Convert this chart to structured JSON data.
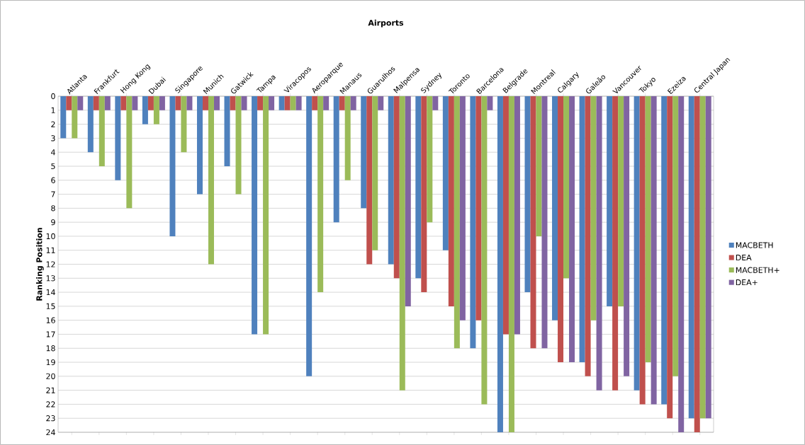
{
  "chart_data": {
    "type": "bar",
    "xlabel": "Airports",
    "ylabel": "Ranking Position",
    "categories": [
      "Atlanta",
      "Frankfurt",
      "Hong Kong",
      "Dubai",
      "Singapore",
      "Munich",
      "Gatwick",
      "Tampa",
      "Viracopos",
      "Aeroparque",
      "Manaus",
      "Guarulhos",
      "Malpensa",
      "Sydney",
      "Toronto",
      "Barcelona",
      "Belgrade",
      "Montreal",
      "Calgary",
      "Galeão",
      "Vancouver",
      "Tokyo",
      "Ezeiza",
      "Central Japan"
    ],
    "series": [
      {
        "name": "MACBETH",
        "color": "#4f81bd",
        "values": [
          3,
          4,
          6,
          2,
          10,
          7,
          5,
          17,
          1,
          20,
          9,
          8,
          12,
          13,
          11,
          18,
          24,
          14,
          16,
          19,
          15,
          21,
          22,
          23
        ]
      },
      {
        "name": "DEA",
        "color": "#c0504d",
        "values": [
          1,
          1,
          1,
          1,
          1,
          1,
          1,
          1,
          1,
          1,
          1,
          12,
          13,
          14,
          15,
          16,
          17,
          18,
          19,
          20,
          21,
          22,
          23,
          24
        ]
      },
      {
        "name": "MACBETH+",
        "color": "#9bbb59",
        "values": [
          3,
          5,
          8,
          2,
          4,
          12,
          7,
          17,
          1,
          14,
          6,
          11,
          21,
          9,
          18,
          22,
          24,
          10,
          13,
          16,
          15,
          19,
          20,
          23
        ]
      },
      {
        "name": "DEA+",
        "color": "#8064a2",
        "values": [
          1,
          1,
          1,
          1,
          1,
          1,
          1,
          1,
          1,
          1,
          1,
          1,
          15,
          1,
          16,
          1,
          17,
          18,
          19,
          21,
          20,
          22,
          24,
          23
        ]
      }
    ],
    "ylim": [
      24,
      0
    ],
    "yticks": [
      0,
      1,
      2,
      3,
      4,
      5,
      6,
      7,
      8,
      9,
      10,
      11,
      12,
      13,
      14,
      15,
      16,
      17,
      18,
      19,
      20,
      21,
      22,
      23,
      24
    ],
    "grid": "y",
    "legend": "right"
  }
}
